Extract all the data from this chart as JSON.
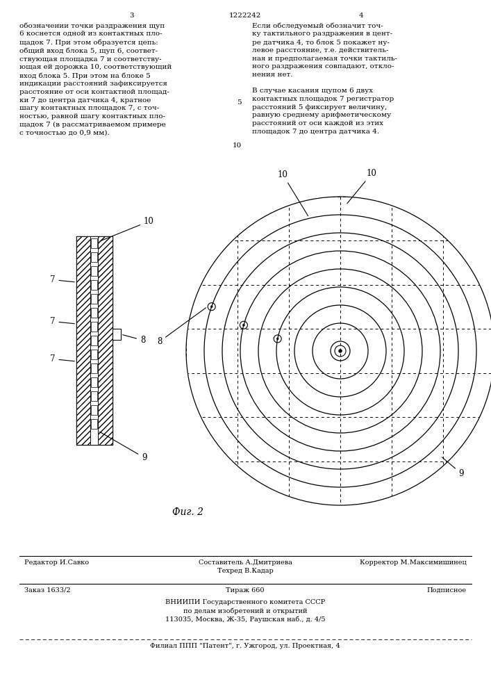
{
  "bg_color": "#ffffff",
  "page_number_left": "3",
  "patent_number": "1222242",
  "page_number_right": "4",
  "text_left": "обозначении точки раздражения щуп\n6 коснется одной из контактных пло-\nщадок 7. При этом образуется цепь:\nобщий вход блока 5, щуп 6, соответ-\nствующая площадка 7 и соответству-\nющая ей дорожка 10, соответствующий\nвход блока 5. При этом на блоке 5\nиндикации расстояний зафиксируется\nрасстояние от оси контактной площад-\nки 7 до центра датчика 4, кратное\nшагу контактных площадок 7, с точ-\nностью, равной шагу контактных пло-\nщадок 7 (в рассматриваемом примере\nс точностью до 0,9 мм).",
  "text_right": "Если обследуемый обозначит точ-\nку тактильного раздражения в цент-\nре датчика 4, то блок 5 покажет ну-\nлевое расстояние, т.е. действитель-\nная и предполагаемая точки тактиль-\nного раздражения совпадают, откло-\nнения нет.\n\nВ случае касания щупом 6 двух\nконтактных площадок 7 регистратор\nрасстояний 5 фиксирует величину,\nравную среднему арифметическому\nрасстояний от оси каждой из этих\nплощадок 7 до центра датчика 4.",
  "line_number_5": "5",
  "line_number_10": "10",
  "fig_caption": "Фиг. 2",
  "footer_line1_col1": "Редактор И.Савко",
  "footer_line1_col2": "Составитель А.Дмитриева\nТехред В.Кадар",
  "footer_line1_col3": "Корректор М.Максимишинец",
  "footer_line2_col1": "Заказ 1633/2",
  "footer_line2_col2": "Тираж 660",
  "footer_line2_col3": "Подписное",
  "footer_line3": "ВНИИПИ Государственного комитета СССР\nпо делам изобретений и открытий\n113035, Москва, Ж-35, Раушская наб., д. 4/5",
  "footer_line4": "Филиал ППП \"Патент\", г. Ужгород, ул. Проектная, 4",
  "line_color": "#000000"
}
